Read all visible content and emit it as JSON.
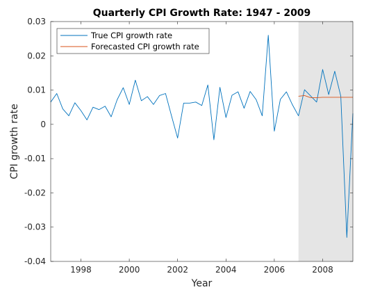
{
  "chart_data": {
    "type": "line",
    "title": "Quarterly CPI Growth Rate: 1947 - 2009",
    "xlabel": "Year",
    "ylabel": "CPI growth rate",
    "xlim": [
      1996.75,
      2009.25
    ],
    "ylim": [
      -0.04,
      0.03
    ],
    "x_ticks": [
      1998,
      2000,
      2002,
      2004,
      2006,
      2008
    ],
    "x_tick_labels": [
      "1998",
      "2000",
      "2002",
      "2004",
      "2006",
      "2008"
    ],
    "y_ticks": [
      -0.04,
      -0.03,
      -0.02,
      -0.01,
      0,
      0.01,
      0.02,
      0.03
    ],
    "y_tick_labels": [
      "-0.04",
      "-0.03",
      "-0.02",
      "-0.01",
      "0",
      "0.01",
      "0.02",
      "0.03"
    ],
    "grid": false,
    "legend_position": "top-left",
    "shaded_region": {
      "x_start": 2007.0,
      "x_end": 2009.25,
      "color": "#e5e5e5"
    },
    "series": [
      {
        "name": "True CPI growth rate",
        "color": "#0072bd",
        "x": [
          1996.75,
          1997.0,
          1997.25,
          1997.5,
          1997.75,
          1998.0,
          1998.25,
          1998.5,
          1998.75,
          1999.0,
          1999.25,
          1999.5,
          1999.75,
          2000.0,
          2000.25,
          2000.5,
          2000.75,
          2001.0,
          2001.25,
          2001.5,
          2001.75,
          2002.0,
          2002.25,
          2002.5,
          2002.75,
          2003.0,
          2003.25,
          2003.5,
          2003.75,
          2004.0,
          2004.25,
          2004.5,
          2004.75,
          2005.0,
          2005.25,
          2005.5,
          2005.75,
          2006.0,
          2006.25,
          2006.5,
          2006.75,
          2007.0,
          2007.25,
          2007.5,
          2007.75,
          2008.0,
          2008.25,
          2008.5,
          2008.75,
          2009.0,
          2009.25
        ],
        "values": [
          0.0065,
          0.009,
          0.0045,
          0.0025,
          0.0063,
          0.004,
          0.0013,
          0.005,
          0.0043,
          0.0053,
          0.0022,
          0.0072,
          0.0107,
          0.0058,
          0.0129,
          0.0069,
          0.0081,
          0.0058,
          0.0084,
          0.009,
          0.0024,
          -0.004,
          0.0062,
          0.0062,
          0.0065,
          0.0055,
          0.0115,
          -0.0045,
          0.0108,
          0.002,
          0.0085,
          0.0095,
          0.0047,
          0.0096,
          0.0072,
          0.0025,
          0.026,
          -0.002,
          0.0073,
          0.0095,
          0.0057,
          0.0025,
          0.0101,
          0.0083,
          0.0065,
          0.016,
          0.0087,
          0.0155,
          0.0082,
          -0.033,
          0.0032
        ]
      },
      {
        "name": "Forecasted CPI growth rate",
        "color": "#d95319",
        "x": [
          2007.0,
          2007.25,
          2007.5,
          2007.75,
          2008.0,
          2008.25,
          2008.5,
          2008.75,
          2009.0,
          2009.25
        ],
        "values": [
          0.0082,
          0.0084,
          0.0078,
          0.0078,
          0.0079,
          0.0079,
          0.0079,
          0.0079,
          0.0079,
          0.0079
        ]
      }
    ]
  }
}
